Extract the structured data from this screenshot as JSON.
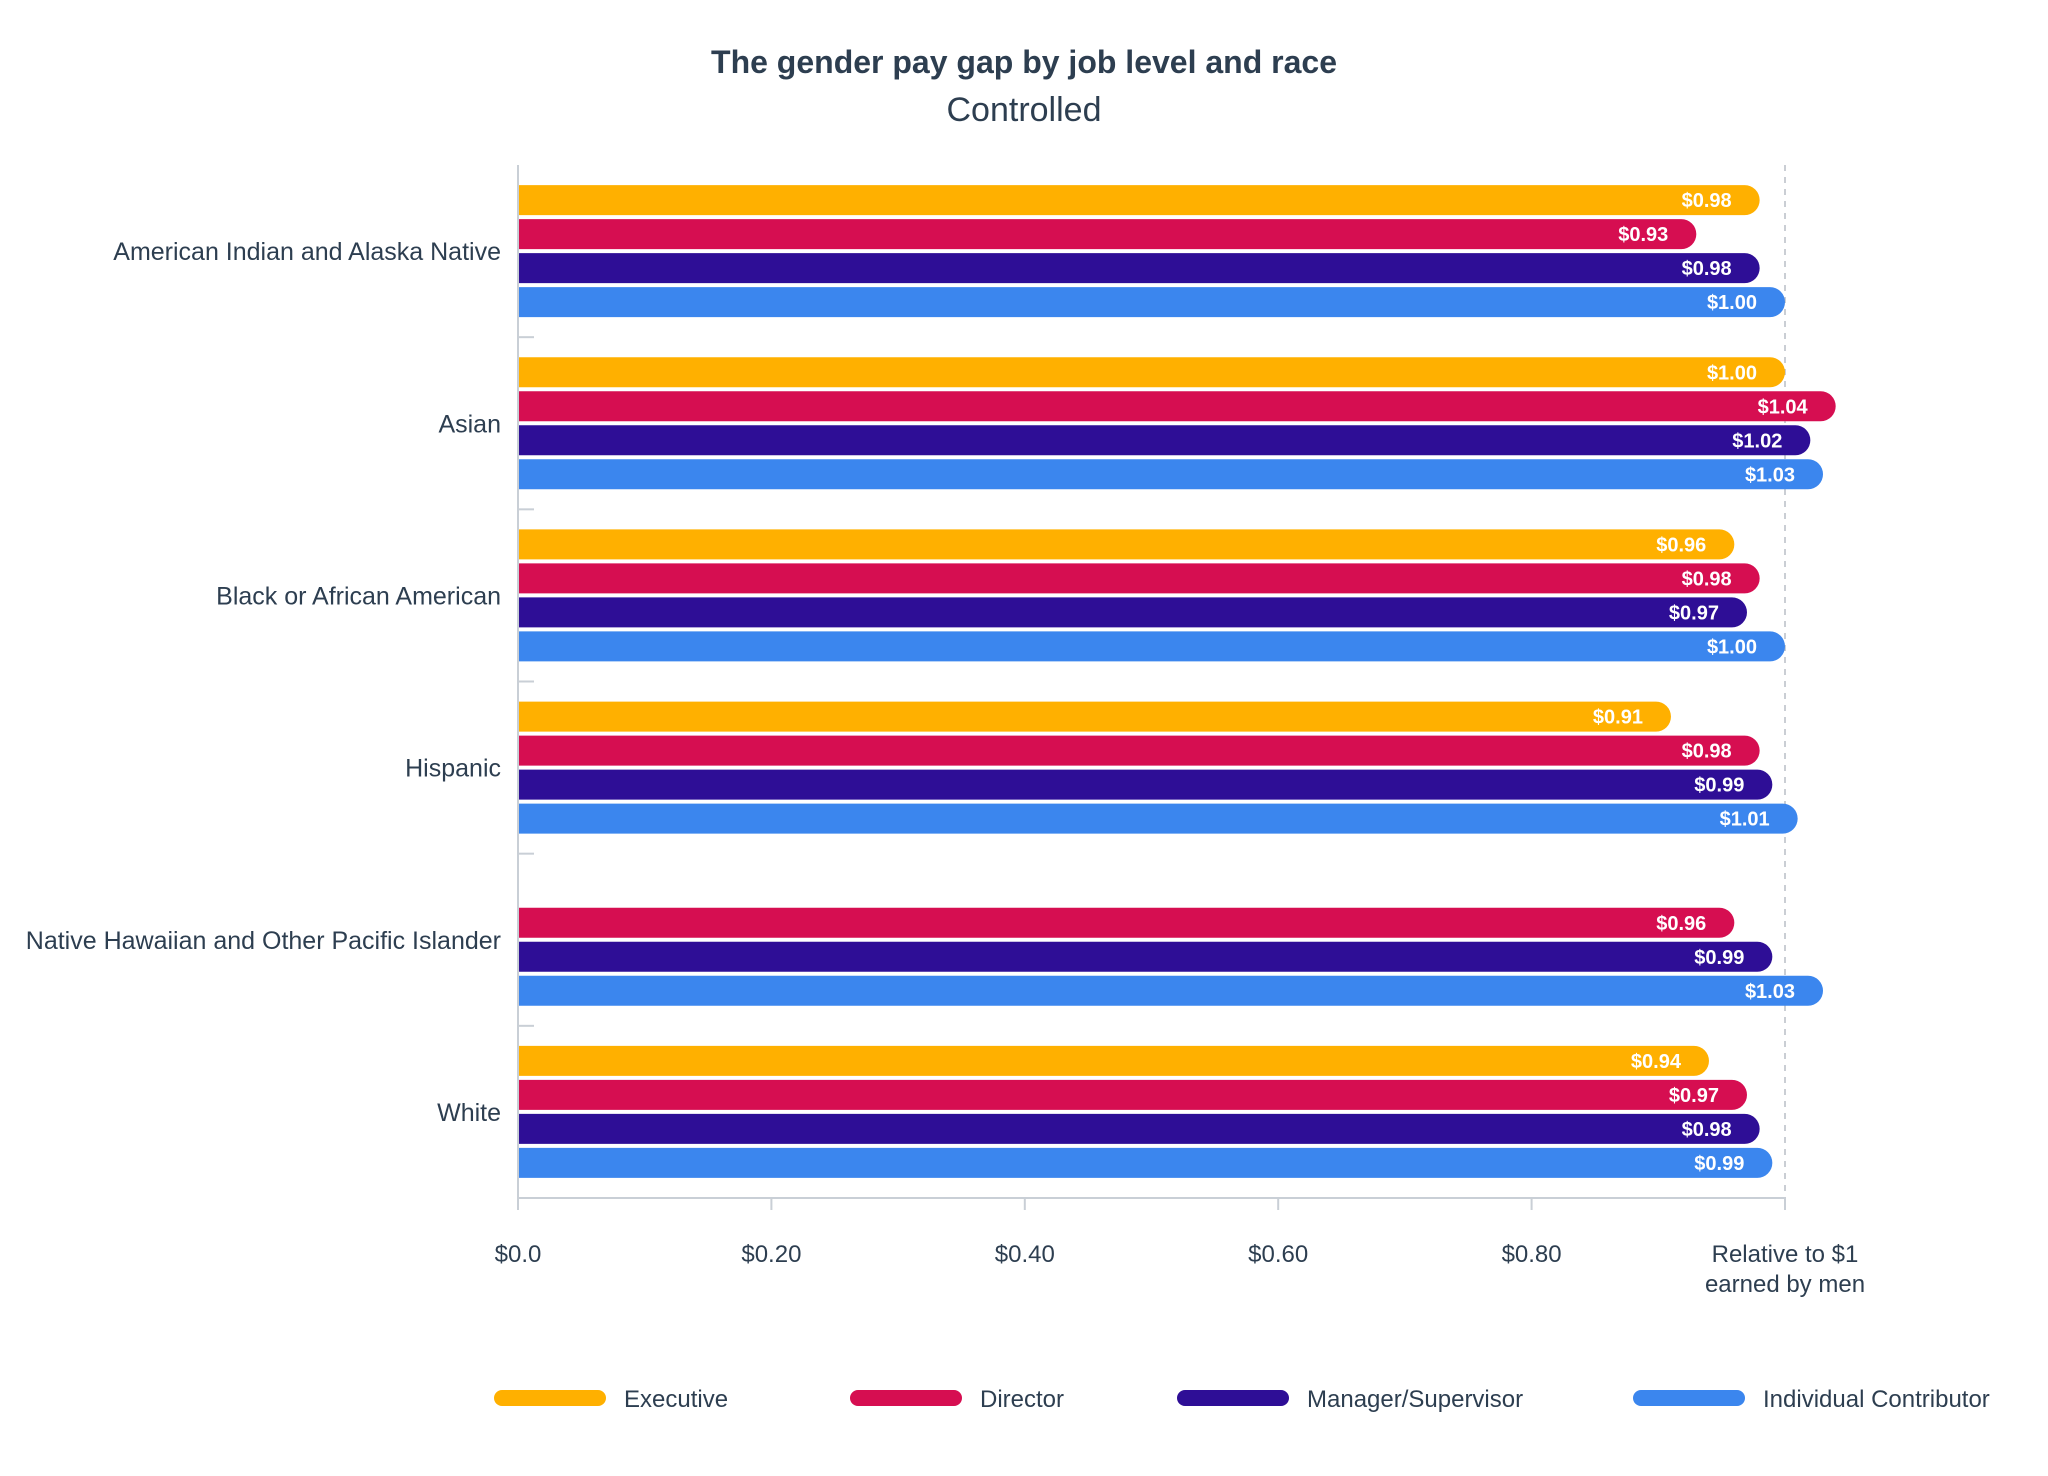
{
  "chart_data": {
    "type": "bar",
    "orientation": "horizontal",
    "title": "The gender pay gap by job level and race",
    "subtitle": "Controlled",
    "categories": [
      "American Indian and Alaska Native",
      "Asian",
      "Black or African American",
      "Hispanic",
      "Native Hawaiian and Other Pacific Islander",
      "White"
    ],
    "series": [
      {
        "name": "Executive",
        "color": "#FFB000",
        "values": [
          0.98,
          1.0,
          0.96,
          0.91,
          null,
          0.94
        ],
        "labels": [
          "$0.98",
          "$1.00",
          "$0.96",
          "$0.91",
          "",
          "$0.94"
        ]
      },
      {
        "name": "Director",
        "color": "#D60E51",
        "values": [
          0.93,
          1.04,
          0.98,
          0.98,
          0.96,
          0.97
        ],
        "labels": [
          "$0.93",
          "$1.04",
          "$0.98",
          "$0.98",
          "$0.96",
          "$0.97"
        ]
      },
      {
        "name": "Manager/Supervisor",
        "color": "#2E0E96",
        "values": [
          0.98,
          1.02,
          0.97,
          0.99,
          0.99,
          0.98
        ],
        "labels": [
          "$0.98",
          "$1.02",
          "$0.97",
          "$0.99",
          "$0.99",
          "$0.98"
        ]
      },
      {
        "name": "Individual Contributor",
        "color": "#3B86EE",
        "values": [
          1.0,
          1.03,
          1.0,
          1.01,
          1.03,
          0.99
        ],
        "labels": [
          "$1.00",
          "$1.03",
          "$1.00",
          "$1.01",
          "$1.03",
          "$0.99"
        ]
      }
    ],
    "xticks": [
      {
        "value": 0.0,
        "label": [
          "$0.0"
        ]
      },
      {
        "value": 0.2,
        "label": [
          "$0.20"
        ]
      },
      {
        "value": 0.4,
        "label": [
          "$0.40"
        ]
      },
      {
        "value": 0.6,
        "label": [
          "$0.60"
        ]
      },
      {
        "value": 0.8,
        "label": [
          "$0.80"
        ]
      },
      {
        "value": 1.0,
        "label": [
          "Relative to $1",
          "earned by men"
        ]
      }
    ],
    "xlim": [
      0,
      1.05
    ],
    "reference_line": 1.0,
    "legend_position": "bottom",
    "grid": false
  }
}
